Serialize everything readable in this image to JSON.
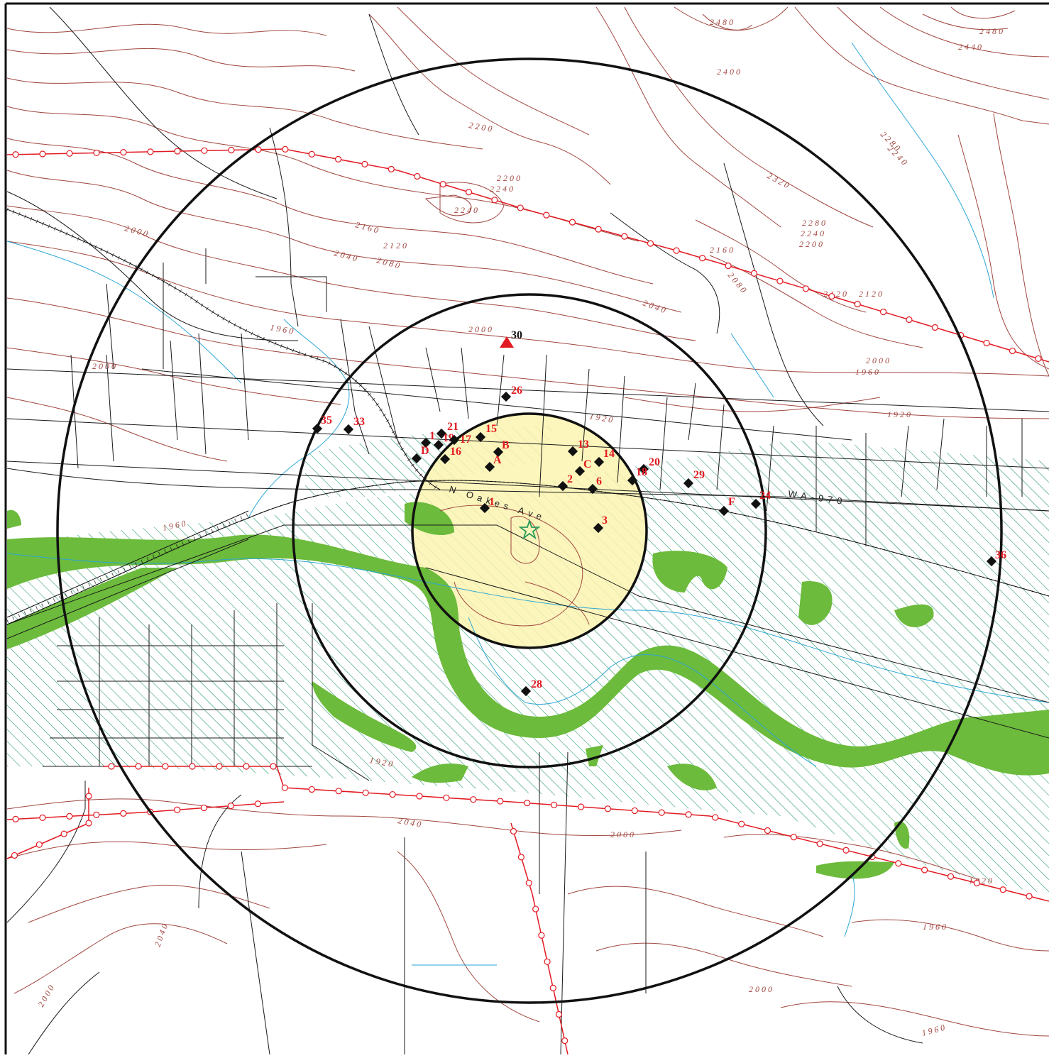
{
  "map": {
    "road_label_highway": "WA-970",
    "road_label_street": "N Oakes Ave",
    "colors": {
      "contour": "#a0463f",
      "road": "#1a1a1a",
      "stream": "#2ca6d4",
      "wetland": "#6cbb3c",
      "floodplain_hatch": "#2a9a6a",
      "inner_zone_fill": "#fbf3b0",
      "powerline": "#e21a22",
      "site_marker": "#111111",
      "site_label": "#e21a22",
      "source_marker": "#2a9a5a",
      "triangle_marker": "#e21a22"
    },
    "contour_labels": [
      "2480",
      "2480",
      "2440",
      "2400",
      "2320",
      "2280",
      "2240",
      "2200",
      "2160",
      "2120",
      "2080",
      "2040",
      "2000",
      "1960",
      "1920",
      "2200",
      "2240",
      "2240",
      "2160",
      "2120",
      "2080",
      "2040",
      "2000",
      "1960",
      "1920",
      "2000",
      "1960",
      "2040",
      "2000",
      "2040",
      "2000",
      "2000",
      "1960",
      "1960",
      "1920",
      "1920",
      "2120",
      "2000",
      "2280",
      "2240",
      "2200"
    ],
    "rings": [
      "inner",
      "middle",
      "outer"
    ],
    "sites": [
      {
        "label": "30",
        "type": "triangle"
      },
      {
        "label": "26",
        "type": "diamond"
      },
      {
        "label": "35",
        "type": "diamond"
      },
      {
        "label": "33",
        "type": "diamond"
      },
      {
        "label": "21",
        "type": "diamond"
      },
      {
        "label": "19",
        "type": "diamond"
      },
      {
        "label": "1",
        "type": "diamond"
      },
      {
        "label": "D",
        "type": "diamond"
      },
      {
        "label": "17",
        "type": "diamond"
      },
      {
        "label": "16",
        "type": "diamond"
      },
      {
        "label": "15",
        "type": "diamond"
      },
      {
        "label": "B",
        "type": "diamond"
      },
      {
        "label": "A",
        "type": "diamond"
      },
      {
        "label": "13",
        "type": "diamond"
      },
      {
        "label": "14",
        "type": "diamond"
      },
      {
        "label": "C",
        "type": "diamond"
      },
      {
        "label": "2",
        "type": "diamond"
      },
      {
        "label": "6",
        "type": "diamond"
      },
      {
        "label": "20",
        "type": "diamond"
      },
      {
        "label": "18",
        "type": "diamond"
      },
      {
        "label": "29",
        "type": "diamond"
      },
      {
        "label": "F",
        "type": "diamond"
      },
      {
        "label": "24",
        "type": "diamond"
      },
      {
        "label": "1",
        "type": "diamond"
      },
      {
        "label": "3",
        "type": "diamond"
      },
      {
        "label": "36",
        "type": "diamond"
      },
      {
        "label": "28",
        "type": "diamond"
      }
    ]
  }
}
